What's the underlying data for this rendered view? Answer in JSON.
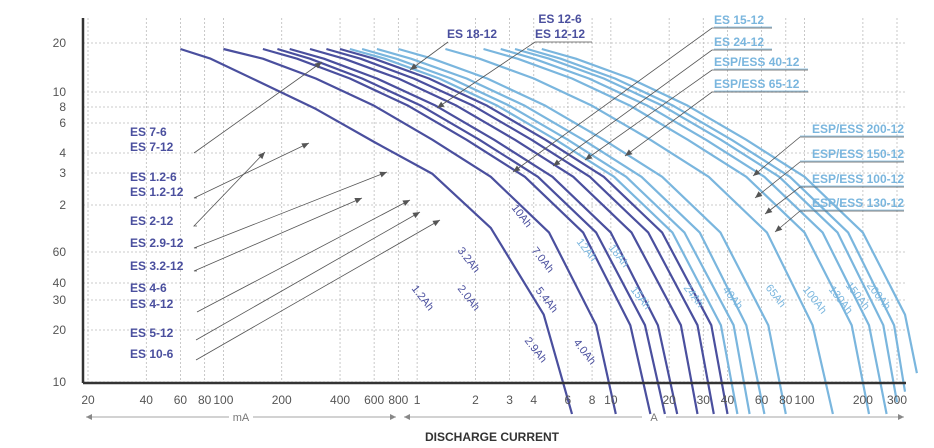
{
  "colors": {
    "dark": "#4a4f9e",
    "light": "#7ab6de",
    "grid": "#bbbbbb",
    "axis": "#333333",
    "leader": "#555555"
  },
  "chart_data": {
    "type": "line",
    "xlabel": "DISCHARGE CURRENT",
    "x_scale": "log",
    "x_units": [
      {
        "label": "mA",
        "from": 20,
        "to": 1000
      },
      {
        "label": "A",
        "from": 1000,
        "to": 300000
      }
    ],
    "x_ticks": [
      {
        "v": 20,
        "label": "20"
      },
      {
        "v": 40,
        "label": "40"
      },
      {
        "v": 60,
        "label": "60"
      },
      {
        "v": 80,
        "label": "80"
      },
      {
        "v": 100,
        "label": "100"
      },
      {
        "v": 200,
        "label": "200"
      },
      {
        "v": 400,
        "label": "400"
      },
      {
        "v": 600,
        "label": "600"
      },
      {
        "v": 800,
        "label": "800"
      },
      {
        "v": 1000,
        "label": "1"
      },
      {
        "v": 2000,
        "label": "2"
      },
      {
        "v": 3000,
        "label": "3"
      },
      {
        "v": 4000,
        "label": "4"
      },
      {
        "v": 6000,
        "label": "6"
      },
      {
        "v": 8000,
        "label": "8"
      },
      {
        "v": 10000,
        "label": "10"
      },
      {
        "v": 20000,
        "label": "20"
      },
      {
        "v": 30000,
        "label": "30"
      },
      {
        "v": 40000,
        "label": "40"
      },
      {
        "v": 60000,
        "label": "60"
      },
      {
        "v": 80000,
        "label": "80"
      },
      {
        "v": 100000,
        "label": "100"
      },
      {
        "v": 200000,
        "label": "200"
      },
      {
        "v": 300000,
        "label": "300"
      }
    ],
    "y_ticks": [
      {
        "label": "20"
      },
      {
        "label": "10"
      },
      {
        "label": "8"
      },
      {
        "label": "6"
      },
      {
        "label": "4"
      },
      {
        "label": "3"
      },
      {
        "label": "2"
      },
      {
        "label": "60"
      },
      {
        "label": "40"
      },
      {
        "label": "30"
      },
      {
        "label": "20"
      },
      {
        "label": "10"
      }
    ],
    "series": [
      {
        "name": "1.2Ah",
        "tone": "dark",
        "x": [
          60,
          86,
          150,
          300,
          600,
          1200,
          2400,
          4500,
          6300
        ],
        "y": [
          12,
          11,
          9,
          7,
          5.2,
          3.9,
          2.4,
          1.1,
          0.45
        ]
      },
      {
        "name": "2.0Ah",
        "tone": "dark",
        "x": [
          100,
          160,
          300,
          600,
          1200,
          2400,
          4800,
          8400,
          10600
        ],
        "y": [
          12,
          11,
          9.2,
          7.2,
          5.3,
          3.8,
          2.3,
          1.0,
          0.45
        ]
      },
      {
        "name": "2.9Ah",
        "tone": "dark",
        "x": [
          160,
          240,
          450,
          900,
          1800,
          3600,
          7200,
          12600,
          16000
        ],
        "y": [
          12,
          11,
          9.2,
          7.2,
          5.3,
          3.8,
          2.3,
          1.0,
          0.45
        ]
      },
      {
        "name": "3.2Ah",
        "tone": "dark",
        "x": [
          190,
          280,
          520,
          1050,
          2100,
          4200,
          8400,
          15000,
          19000
        ],
        "y": [
          12,
          11,
          9.2,
          7.2,
          5.3,
          3.8,
          2.3,
          1.0,
          0.45
        ]
      },
      {
        "name": "4.0Ah",
        "tone": "dark",
        "x": [
          220,
          330,
          620,
          1250,
          2500,
          5000,
          10000,
          17500,
          22000
        ],
        "y": [
          12,
          11,
          9.2,
          7.2,
          5.3,
          3.8,
          2.3,
          1.0,
          0.45
        ]
      },
      {
        "name": "5.4Ah",
        "tone": "dark",
        "x": [
          280,
          420,
          800,
          1600,
          3200,
          6400,
          12800,
          23000,
          28000
        ],
        "y": [
          12,
          11,
          9.2,
          7.2,
          5.3,
          3.8,
          2.3,
          1.0,
          0.45
        ]
      },
      {
        "name": "7.0Ah",
        "tone": "dark",
        "x": [
          340,
          510,
          960,
          1950,
          3900,
          7800,
          15600,
          28000,
          34000
        ],
        "y": [
          12,
          11,
          9.2,
          7.2,
          5.3,
          3.8,
          2.3,
          1.0,
          0.45
        ]
      },
      {
        "name": "10Ah",
        "tone": "dark",
        "x": [
          400,
          600,
          1150,
          2300,
          4600,
          9200,
          18400,
          33000,
          40000
        ],
        "y": [
          12,
          11,
          9.2,
          7.2,
          5.3,
          3.8,
          2.3,
          1.0,
          0.45
        ]
      },
      {
        "name": "12Ah",
        "tone": "light",
        "x": [
          450,
          680,
          1300,
          2600,
          5200,
          10400,
          20800,
          37000,
          45000
        ],
        "y": [
          12,
          11,
          9.2,
          7.2,
          5.3,
          3.8,
          2.3,
          1.0,
          0.45
        ]
      },
      {
        "name": "15Ah",
        "tone": "light",
        "x": [
          520,
          780,
          1500,
          3000,
          6000,
          12000,
          24000,
          43000,
          52000
        ],
        "y": [
          12,
          11,
          9.2,
          7.2,
          5.3,
          3.8,
          2.3,
          1.0,
          0.45
        ]
      },
      {
        "name": "18Ah",
        "tone": "light",
        "x": [
          620,
          930,
          1800,
          3600,
          7200,
          14400,
          28800,
          50000,
          62000
        ],
        "y": [
          12,
          11,
          9.2,
          7.2,
          5.3,
          3.8,
          2.3,
          1.0,
          0.45
        ]
      },
      {
        "name": "24Ah",
        "tone": "light",
        "x": [
          800,
          1200,
          2300,
          4600,
          9200,
          18400,
          36800,
          65000,
          80000
        ],
        "y": [
          12,
          11,
          9.2,
          7.2,
          5.3,
          3.8,
          2.3,
          1.0,
          0.45
        ]
      },
      {
        "name": "40Ah",
        "tone": "light",
        "x": [
          1400,
          2100,
          4000,
          8000,
          16000,
          32000,
          64000,
          110000,
          140000
        ],
        "y": [
          12,
          11,
          9.2,
          7.2,
          5.3,
          3.8,
          2.3,
          1.0,
          0.45
        ]
      },
      {
        "name": "65Ah",
        "tone": "light",
        "x": [
          2200,
          3300,
          6300,
          12600,
          25000,
          50000,
          100000,
          175000,
          215000
        ],
        "y": [
          12,
          11,
          9.2,
          7.2,
          5.3,
          3.8,
          2.3,
          1.0,
          0.45
        ]
      },
      {
        "name": "100Ah",
        "tone": "light",
        "x": [
          2700,
          4000,
          7700,
          15500,
          31000,
          62000,
          124000,
          215000,
          265000
        ],
        "y": [
          12,
          11,
          9.2,
          7.2,
          5.3,
          3.8,
          2.3,
          1.0,
          0.45
        ]
      },
      {
        "name": "130Ah",
        "tone": "light",
        "x": [
          3200,
          4800,
          9200,
          18500,
          37000,
          74000,
          148000,
          255000,
          300000
        ],
        "y": [
          12,
          11,
          9.2,
          7.2,
          5.3,
          3.8,
          2.3,
          1.0,
          0.5
        ]
      },
      {
        "name": "150Ah",
        "tone": "light",
        "x": [
          3700,
          5500,
          10500,
          21000,
          42000,
          84000,
          168000,
          290000,
          330000
        ],
        "y": [
          12,
          11,
          9.2,
          7.2,
          5.3,
          3.8,
          2.3,
          1.0,
          0.55
        ]
      },
      {
        "name": "200Ah",
        "tone": "light",
        "x": [
          4400,
          6600,
          12600,
          25000,
          50000,
          100000,
          200000,
          330000,
          380000
        ],
        "y": [
          12,
          11,
          9.2,
          7.2,
          5.3,
          3.8,
          2.3,
          1.1,
          0.65
        ]
      }
    ],
    "legend": {
      "left": [
        "ES 7-6",
        "ES 7-12",
        "ES 1.2-6",
        "ES 1.2-12",
        "ES 2-12",
        "ES 2.9-12",
        "ES 3.2-12",
        "ES 4-6",
        "ES 4-12",
        "ES 5-12",
        "ES 10-6"
      ],
      "top_dark": [
        "ES 18-12",
        "ES 12-6",
        "ES 12-12"
      ],
      "top_right": [
        "ES 15-12",
        "ES 24-12",
        "ESP/ESS 40-12",
        "ESP/ESS 65-12"
      ],
      "right": [
        "ESP/ESS 200-12",
        "ESP/ESS 150-12",
        "ESP/ESS 100-12",
        "ESP/ESS 130-12"
      ]
    }
  }
}
